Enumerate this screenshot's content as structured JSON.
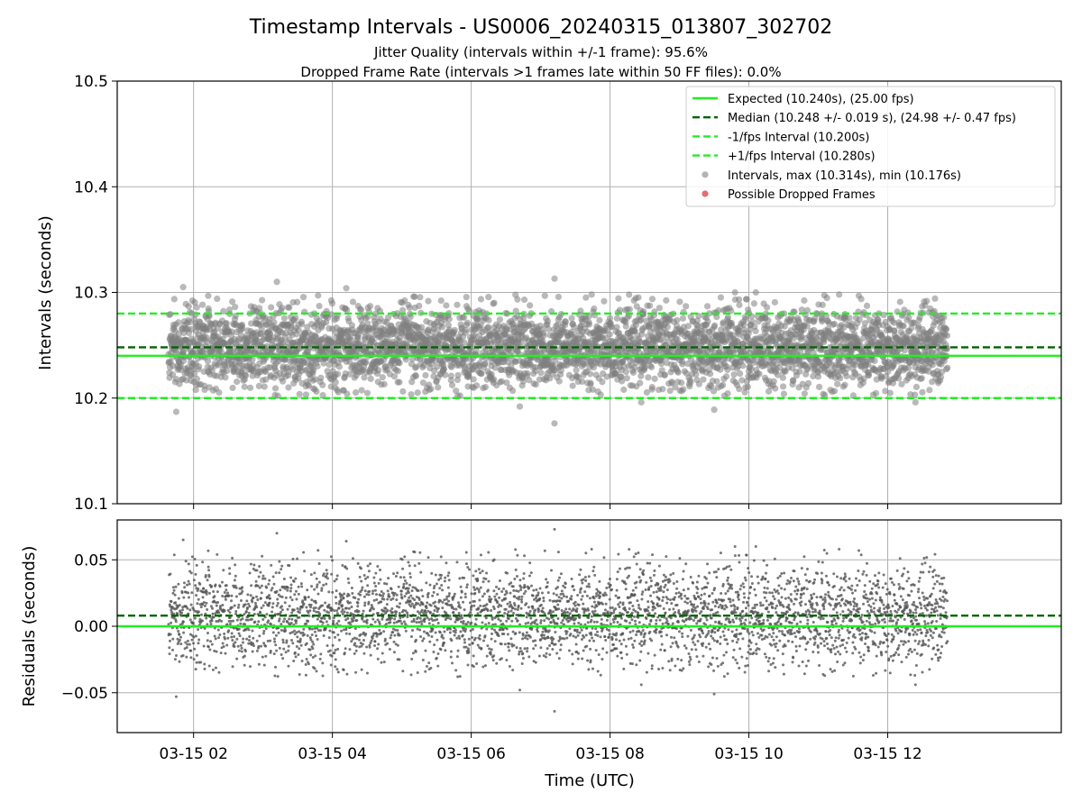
{
  "chart_data": {
    "type": "scatter",
    "title": "Timestamp Intervals - US0006_20240315_013807_302702",
    "subtitles": [
      "Jitter Quality (intervals within +/-1 frame): 95.6%",
      "Dropped Frame Rate (intervals >1 frames late within 50 FF files): 0.0%"
    ],
    "xlabel": "Time (UTC)",
    "x_range_hours": [
      0.9,
      14.5
    ],
    "x_tick_labels": [
      "03-15 02",
      "03-15 04",
      "03-15 06",
      "03-15 08",
      "03-15 10",
      "03-15 12"
    ],
    "x_tick_hours": [
      2,
      4,
      6,
      8,
      10,
      12
    ],
    "data_x_span_hours": [
      1.64,
      12.86
    ],
    "top_panel": {
      "ylabel": "Intervals (seconds)",
      "ylim": [
        10.1,
        10.5
      ],
      "y_ticks": [
        10.1,
        10.2,
        10.3,
        10.4,
        10.5
      ],
      "y_tick_labels": [
        "10.1",
        "10.2",
        "10.3",
        "10.4",
        "10.5"
      ],
      "grid": true,
      "reference_lines": [
        {
          "label": "Expected (10.240s), (25.00 fps)",
          "value": 10.24,
          "color": "#22ee22",
          "style": "solid"
        },
        {
          "label": "Median (10.248 +/- 0.019 s), (24.98 +/- 0.47 fps)",
          "value": 10.248,
          "color": "#006400",
          "style": "dashed"
        },
        {
          "label": "-1/fps Interval (10.200s)",
          "value": 10.2,
          "color": "#22ee22",
          "style": "dashed"
        },
        {
          "label": "+1/fps Interval (10.280s)",
          "value": 10.28,
          "color": "#22ee22",
          "style": "dashed"
        }
      ],
      "scatter_series": [
        {
          "label": "Intervals, max (10.314s), min (10.176s)",
          "color": "#808080",
          "center": 10.248,
          "spread": 0.019,
          "max": 10.314,
          "min": 10.176
        },
        {
          "label": "Possible Dropped Frames",
          "color": "#ee4444",
          "count": 0
        }
      ],
      "legend_placement": "upper right"
    },
    "bottom_panel": {
      "ylabel": "Residuals (seconds)",
      "ylim": [
        -0.08,
        0.08
      ],
      "y_ticks": [
        -0.05,
        0.0,
        0.05
      ],
      "y_tick_labels": [
        "−0.05",
        "0.00",
        "0.05"
      ],
      "grid": true,
      "reference_lines": [
        {
          "value": 0.0,
          "color": "#22ee22",
          "style": "solid"
        },
        {
          "value": 0.008,
          "color": "#006400",
          "style": "dashed"
        }
      ],
      "residual_center": 0.008,
      "residual_spread": 0.019
    },
    "point_count": 3950,
    "outliers": [
      {
        "hour": 1.85,
        "value": 10.305
      },
      {
        "hour": 3.2,
        "value": 10.31
      },
      {
        "hour": 4.2,
        "value": 10.304
      },
      {
        "hour": 7.2,
        "value": 10.313
      },
      {
        "hour": 7.2,
        "value": 10.176
      },
      {
        "hour": 1.75,
        "value": 10.187
      },
      {
        "hour": 6.7,
        "value": 10.192
      },
      {
        "hour": 9.5,
        "value": 10.189
      },
      {
        "hour": 12.4,
        "value": 10.196
      },
      {
        "hour": 9.8,
        "value": 10.3
      },
      {
        "hour": 10.1,
        "value": 10.3
      },
      {
        "hour": 8.45,
        "value": 10.196
      }
    ]
  }
}
